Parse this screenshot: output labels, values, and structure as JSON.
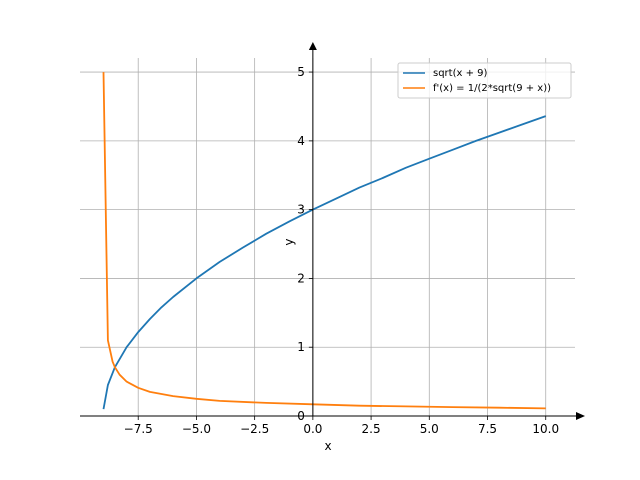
{
  "chart_data": {
    "type": "line",
    "title": "",
    "xlabel": "x",
    "ylabel": "y",
    "xlim": [
      -10.0,
      11.3
    ],
    "ylim": [
      0,
      5.35
    ],
    "grid": true,
    "legend_placement": "top-right",
    "x_ticks": [
      {
        "value": -7.5,
        "label": "−7.5"
      },
      {
        "value": -5.0,
        "label": "−5.0"
      },
      {
        "value": -2.5,
        "label": "−2.5"
      },
      {
        "value": 0.0,
        "label": "0.0"
      },
      {
        "value": 2.5,
        "label": "2.5"
      },
      {
        "value": 5.0,
        "label": "5.0"
      },
      {
        "value": 7.5,
        "label": "7.5"
      },
      {
        "value": 10.0,
        "label": "10.0"
      }
    ],
    "y_ticks": [
      {
        "value": 0,
        "label": "0"
      },
      {
        "value": 1,
        "label": "1"
      },
      {
        "value": 2,
        "label": "2"
      },
      {
        "value": 3,
        "label": "3"
      },
      {
        "value": 4,
        "label": "4"
      },
      {
        "value": 5,
        "label": "5"
      }
    ],
    "series": [
      {
        "name": "sqrt(x + 9)",
        "color": "#1f77b4",
        "x": [
          -8.99,
          -8.8,
          -8.5,
          -8.0,
          -7.5,
          -7.0,
          -6.5,
          -6.0,
          -5.0,
          -4.0,
          -3.0,
          -2.0,
          -1.0,
          0.0,
          1.0,
          2.0,
          3.0,
          4.0,
          5.0,
          6.0,
          7.0,
          8.0,
          9.0,
          10.0
        ],
        "y": [
          0.1,
          0.45,
          0.71,
          1.0,
          1.22,
          1.41,
          1.58,
          1.73,
          2.0,
          2.24,
          2.45,
          2.65,
          2.83,
          3.0,
          3.16,
          3.32,
          3.46,
          3.61,
          3.74,
          3.87,
          4.0,
          4.12,
          4.24,
          4.36
        ]
      },
      {
        "name": "f'(x) = 1/(2*sqrt(9 + x))",
        "color": "#ff7f0e",
        "x": [
          -8.99,
          -8.8,
          -8.6,
          -8.5,
          -8.3,
          -8.0,
          -7.5,
          -7.0,
          -6.0,
          -5.0,
          -4.0,
          -2.0,
          0.0,
          2.0,
          4.0,
          6.0,
          8.0,
          10.0
        ],
        "y": [
          5.0,
          1.1,
          0.79,
          0.71,
          0.6,
          0.5,
          0.41,
          0.35,
          0.29,
          0.25,
          0.22,
          0.19,
          0.17,
          0.15,
          0.14,
          0.13,
          0.12,
          0.11
        ]
      }
    ]
  }
}
